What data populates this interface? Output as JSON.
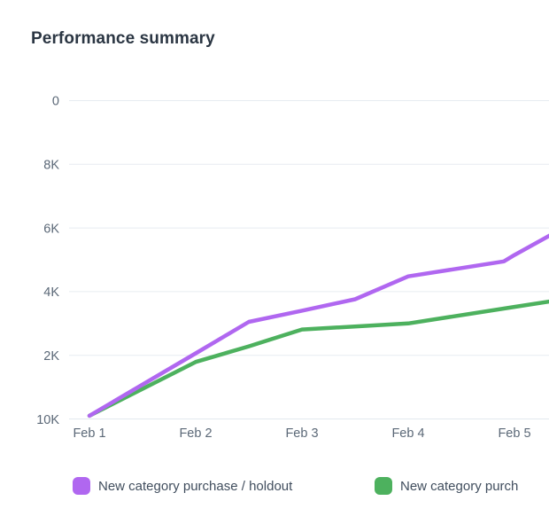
{
  "title": "Performance summary",
  "colors": {
    "purple_series": "#b067f0",
    "green_series": "#4db15e",
    "gridline": "#e7ecf1",
    "title_text": "#2b3643",
    "axis_text": "#5b6877",
    "legend_text": "#414e5e",
    "background": "#ffffff"
  },
  "chart_data": {
    "type": "line",
    "title": "Performance summary",
    "x_tick_labels": [
      "Feb 1",
      "Feb 2",
      "Feb 3",
      "Feb 4",
      "Feb 5"
    ],
    "y_tick_labels": [
      "0",
      "2K",
      "4K",
      "6K",
      "8K",
      "10K"
    ],
    "ylim": [
      0,
      10000
    ],
    "xlim_days": [
      1,
      5.33
    ],
    "grid": "horizontal-only",
    "legend_position": "bottom",
    "series": [
      {
        "name": "New category purchase / holdout",
        "color": "#b067f0",
        "points": [
          {
            "day": 1,
            "value": 100
          },
          {
            "day": 2,
            "value": 2060
          },
          {
            "day": 2.5,
            "value": 3050
          },
          {
            "day": 3,
            "value": 3400
          },
          {
            "day": 3.5,
            "value": 3760
          },
          {
            "day": 4,
            "value": 4480
          },
          {
            "day": 4.9,
            "value": 4950
          },
          {
            "day": 5,
            "value": 5150
          },
          {
            "day": 5.33,
            "value": 5760
          }
        ]
      },
      {
        "name": "New category purch",
        "color": "#4db15e",
        "points": [
          {
            "day": 1,
            "value": 100
          },
          {
            "day": 2,
            "value": 1790
          },
          {
            "day": 2.5,
            "value": 2280
          },
          {
            "day": 3,
            "value": 2810
          },
          {
            "day": 4,
            "value": 3000
          },
          {
            "day": 5,
            "value": 3520
          },
          {
            "day": 5.33,
            "value": 3690
          }
        ]
      }
    ]
  },
  "legend": {
    "items": [
      {
        "label": "New category purchase / holdout",
        "color": "#b067f0"
      },
      {
        "label": "New category purch",
        "color": "#4db15e"
      }
    ]
  }
}
